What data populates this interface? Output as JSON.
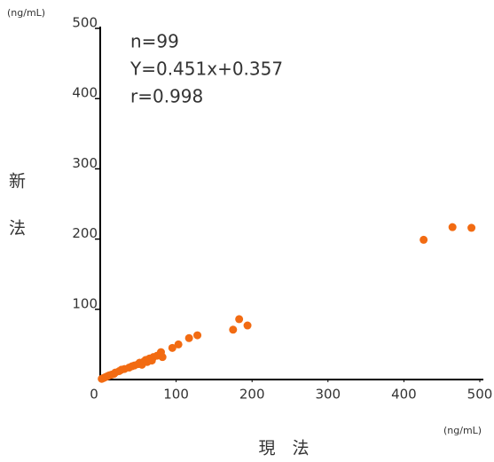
{
  "chart_data": {
    "type": "scatter",
    "y_unit": "(ng/mL)",
    "x_unit": "(ng/mL)",
    "ylabel": [
      "新",
      "法"
    ],
    "xlabel": "現　法",
    "annotations": [
      "n=99",
      "Y=0.451x+0.357",
      "r=0.998"
    ],
    "xlim": [
      0,
      500
    ],
    "ylim": [
      0,
      500
    ],
    "xticks": [
      0,
      100,
      200,
      300,
      400,
      500
    ],
    "yticks": [
      100,
      200,
      300,
      400,
      500
    ],
    "color": "#f26b12",
    "x": [
      2,
      4,
      6,
      8,
      10,
      12,
      15,
      18,
      20,
      25,
      28,
      32,
      38,
      42,
      45,
      50,
      52,
      55,
      58,
      60,
      62,
      65,
      68,
      70,
      75,
      80,
      82,
      95,
      103,
      117,
      128,
      175,
      183,
      194,
      426,
      464,
      489
    ],
    "y": [
      1,
      2,
      3,
      4,
      5,
      6,
      7,
      8,
      10,
      12,
      14,
      15,
      17,
      19,
      20,
      22,
      24,
      21,
      26,
      28,
      25,
      30,
      27,
      32,
      34,
      39,
      32,
      45,
      50,
      59,
      63,
      71,
      86,
      77,
      199,
      217,
      216
    ]
  }
}
